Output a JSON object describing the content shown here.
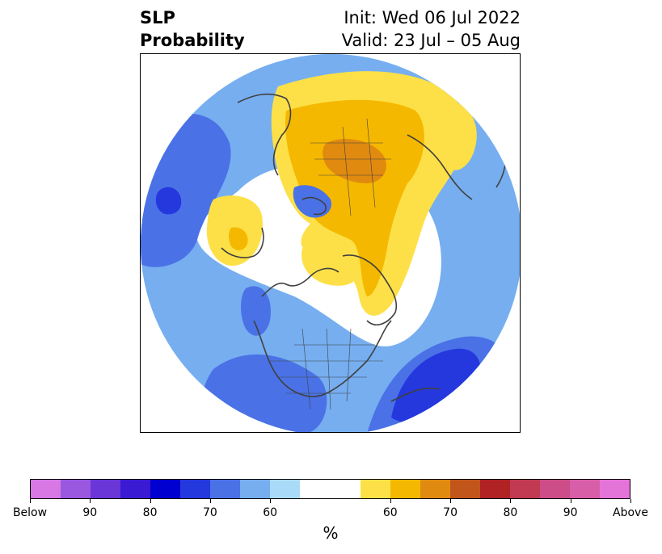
{
  "title": {
    "left_line1": "SLP",
    "left_line2": "Probability",
    "right_line1": "Init: Wed 06 Jul 2022",
    "right_line2": "Valid: 23 Jul – 05 Aug"
  },
  "colorbar": {
    "unit": "%",
    "colors": [
      "#d778e5",
      "#9a57e0",
      "#6b36d8",
      "#3b1ad3",
      "#0000d0",
      "#2538dd",
      "#4a72e6",
      "#76aef0",
      "#a9daf8",
      "#ffffff",
      "#ffffff",
      "#fde047",
      "#f5b800",
      "#e08a10",
      "#c2561a",
      "#b02224",
      "#c23a52",
      "#cc4d87",
      "#d85ea8",
      "#e574d9"
    ],
    "tick_labels": [
      "Below",
      "90",
      "80",
      "70",
      "60",
      "60",
      "70",
      "80",
      "90",
      "Above"
    ]
  },
  "map": {
    "colors": {
      "blue_light": "#a9daf8",
      "blue_mid": "#76aef0",
      "blue_strong": "#4a72e6",
      "blue_deep": "#2538dd",
      "yellow": "#fde047",
      "gold": "#f5b800",
      "orange": "#e08a10",
      "coast": "#404040"
    }
  }
}
